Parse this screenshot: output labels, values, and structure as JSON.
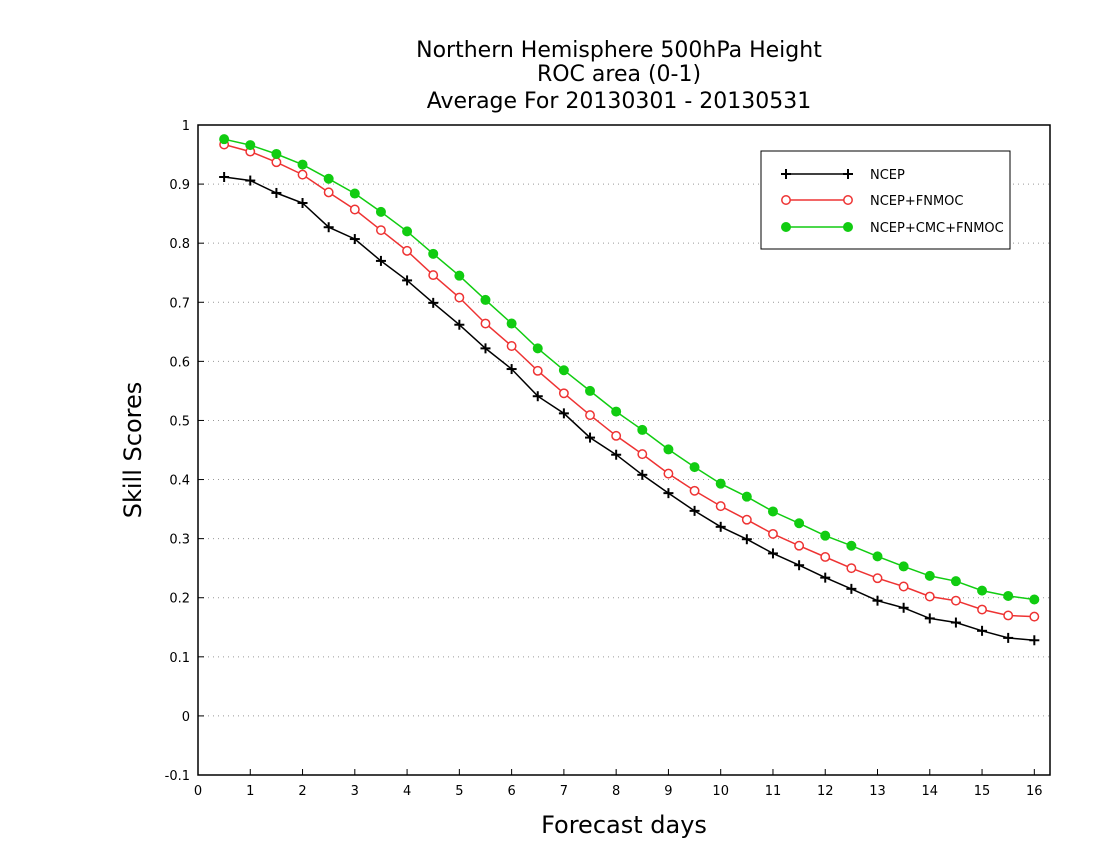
{
  "chart_data": {
    "type": "line",
    "title": [
      "Northern Hemisphere 500hPa Height",
      "ROC area (0-1)",
      "Average For 20130301 - 20130531"
    ],
    "xlabel": "Forecast days",
    "ylabel": "Skill Scores",
    "xlim": [
      0,
      16.3
    ],
    "ylim": [
      -0.1,
      1
    ],
    "xticks": [
      0,
      1,
      2,
      3,
      4,
      5,
      6,
      7,
      8,
      9,
      10,
      11,
      12,
      13,
      14,
      15,
      16
    ],
    "xtick_labels": [
      "0",
      "1",
      "2",
      "3",
      "4",
      "5",
      "6",
      "7",
      "8",
      "9",
      "10",
      "11",
      "12",
      "13",
      "14",
      "15",
      "16"
    ],
    "yticks": [
      -0.1,
      0,
      0.1,
      0.2,
      0.3,
      0.4,
      0.5,
      0.6,
      0.7,
      0.8,
      0.9,
      1
    ],
    "ytick_labels": [
      "-0.1",
      "0",
      "0.1",
      "0.2",
      "0.3",
      "0.4",
      "0.5",
      "0.6",
      "0.7",
      "0.8",
      "0.9",
      "1"
    ],
    "grid": "horizontal-dotted",
    "legend_position": "top-right",
    "x": [
      0.5,
      1,
      1.5,
      2,
      2.5,
      3,
      3.5,
      4,
      4.5,
      5,
      5.5,
      6,
      6.5,
      7,
      7.5,
      8,
      8.5,
      9,
      9.5,
      10,
      10.5,
      11,
      11.5,
      12,
      12.5,
      13,
      13.5,
      14,
      14.5,
      15,
      15.5,
      16
    ],
    "series": [
      {
        "name": "NCEP",
        "color": "#000000",
        "marker": "plus",
        "values": [
          0.912,
          0.906,
          0.885,
          0.868,
          0.827,
          0.807,
          0.77,
          0.737,
          0.699,
          0.662,
          0.622,
          0.587,
          0.541,
          0.512,
          0.471,
          0.442,
          0.408,
          0.377,
          0.347,
          0.32,
          0.299,
          0.275,
          0.255,
          0.234,
          0.215,
          0.195,
          0.183,
          0.165,
          0.158,
          0.144,
          0.132,
          0.128
        ]
      },
      {
        "name": "NCEP+FNMOC",
        "color": "#ee3333",
        "marker": "open-circle",
        "values": [
          0.967,
          0.955,
          0.937,
          0.916,
          0.886,
          0.857,
          0.822,
          0.787,
          0.746,
          0.708,
          0.664,
          0.626,
          0.584,
          0.546,
          0.509,
          0.474,
          0.443,
          0.41,
          0.381,
          0.355,
          0.332,
          0.308,
          0.288,
          0.269,
          0.25,
          0.233,
          0.219,
          0.202,
          0.195,
          0.18,
          0.17,
          0.168
        ]
      },
      {
        "name": "NCEP+CMC+FNMOC",
        "color": "#11cc11",
        "marker": "filled-circle",
        "values": [
          0.976,
          0.966,
          0.951,
          0.933,
          0.909,
          0.884,
          0.853,
          0.82,
          0.782,
          0.745,
          0.704,
          0.664,
          0.622,
          0.585,
          0.55,
          0.515,
          0.484,
          0.451,
          0.421,
          0.393,
          0.371,
          0.346,
          0.326,
          0.305,
          0.288,
          0.27,
          0.253,
          0.237,
          0.228,
          0.212,
          0.203,
          0.197
        ]
      }
    ]
  }
}
